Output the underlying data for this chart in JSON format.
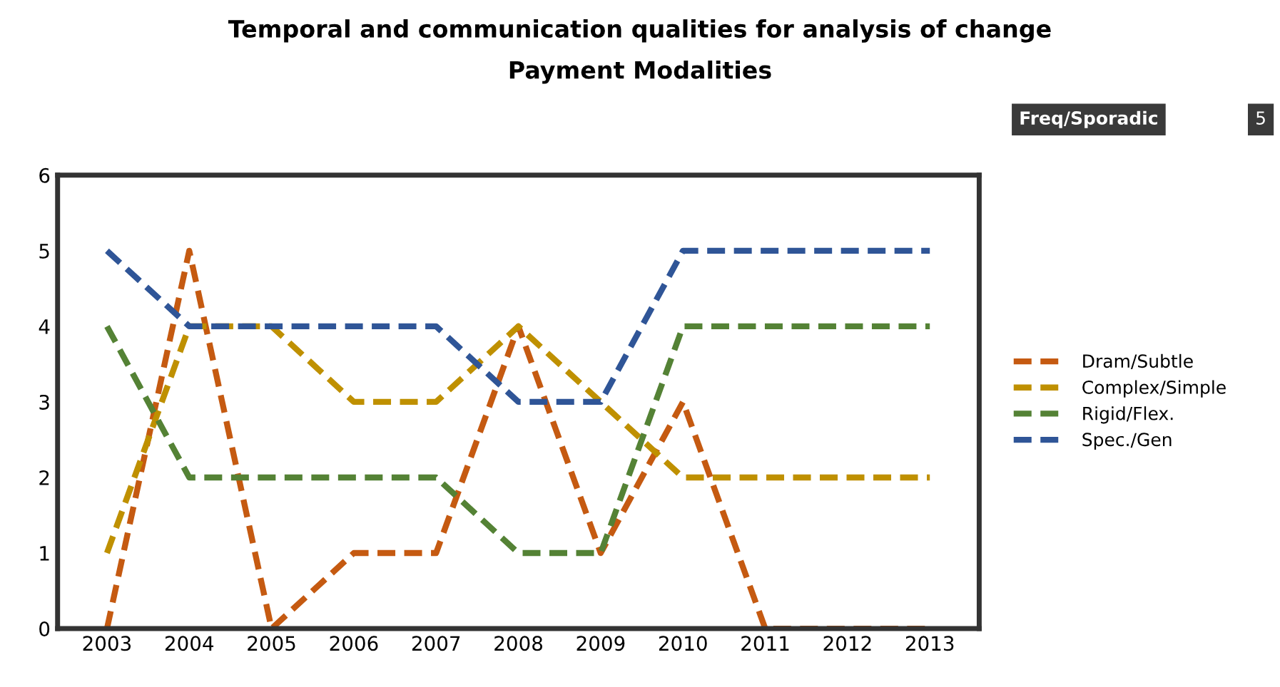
{
  "chart_data": {
    "type": "line",
    "title": "Temporal and communication qualities for analysis of change",
    "subtitle": "Payment Modalities",
    "annotations": [
      "Freq/Sporadic",
      "5"
    ],
    "categories": [
      "2003",
      "2004",
      "2005",
      "2006",
      "2007",
      "2008",
      "2009",
      "2010",
      "2011",
      "2012",
      "2013"
    ],
    "series": [
      {
        "name": "Dram/Subtle",
        "color": "#c55a11",
        "values": [
          0,
          5,
          0,
          1,
          1,
          4,
          1,
          3,
          0,
          0,
          0
        ]
      },
      {
        "name": "Complex/Simple",
        "color": "#bf9000",
        "values": [
          1,
          4,
          4,
          3,
          3,
          4,
          3,
          2,
          2,
          2,
          2
        ]
      },
      {
        "name": "Rigid/Flex.",
        "color": "#548235",
        "values": [
          4,
          2,
          2,
          2,
          2,
          1,
          1,
          4,
          4,
          4,
          4
        ]
      },
      {
        "name": "Spec./Gen",
        "color": "#2f5597",
        "values": [
          5,
          4,
          4,
          4,
          4,
          3,
          3,
          5,
          5,
          5,
          5
        ]
      }
    ],
    "ylim": [
      0,
      6
    ],
    "yticks": [
      0,
      1,
      2,
      3,
      4,
      5,
      6
    ],
    "grid": false,
    "legend": "right",
    "line_style": "dashed",
    "marker": "none"
  }
}
